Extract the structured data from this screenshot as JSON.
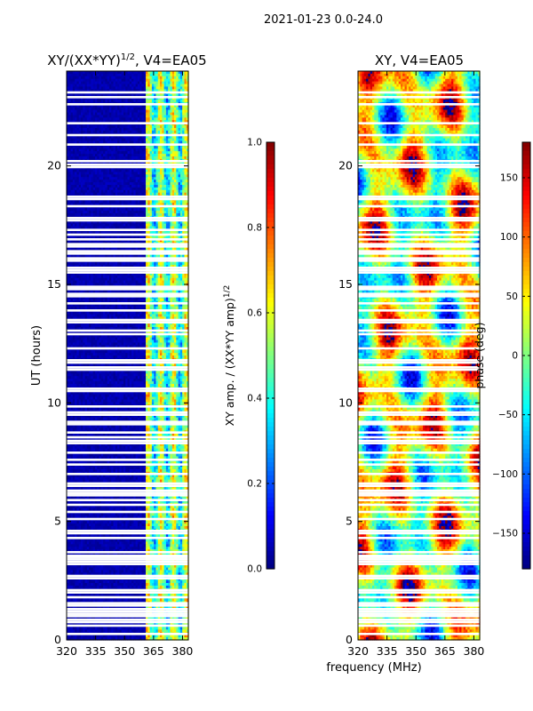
{
  "figure_title": "2021-01-23 0.0-24.0",
  "shared": {
    "xlabel": "frequency (MHz)",
    "ylabel": "UT (hours)"
  },
  "chart_data": [
    {
      "type": "heatmap",
      "id": "amp",
      "title": "XY/(XX*YY)^{1/2}, V4=EA05",
      "title_main": "XY/(XX*YY)",
      "title_sup": "1/2",
      "title_tail": ", V4=EA05",
      "xlim": [
        320,
        383
      ],
      "ylim": [
        0,
        24
      ],
      "xticks": [
        320,
        335,
        350,
        365,
        380
      ],
      "yticks": [
        0,
        5,
        10,
        15,
        20
      ],
      "active_freq_range": [
        360,
        382
      ],
      "colorbar": {
        "label_main": "XY amp. / (XX*YY amp)",
        "label_sup": "1/2",
        "range": [
          0.0,
          1.0
        ],
        "ticks": [
          "0.0",
          "0.2",
          "0.4",
          "0.6",
          "0.8",
          "1.0"
        ],
        "tick_values": [
          0.0,
          0.2,
          0.4,
          0.6,
          0.8,
          1.0
        ]
      }
    },
    {
      "type": "heatmap",
      "id": "phase",
      "title": "XY, V4=EA05",
      "xlim": [
        320,
        383
      ],
      "ylim": [
        0,
        24
      ],
      "xticks": [
        320,
        335,
        350,
        365,
        380
      ],
      "yticks": [
        0,
        5,
        10,
        15,
        20
      ],
      "colorbar": {
        "label": "phase (deg)",
        "range": [
          -180,
          180
        ],
        "ticks": [
          "150",
          "100",
          "50",
          "0",
          "−50",
          "−100",
          "−150"
        ],
        "tick_values": [
          150,
          100,
          50,
          0,
          -50,
          -100,
          -150
        ]
      }
    }
  ],
  "flagged_hours": [
    0.25,
    0.6,
    0.75,
    0.85,
    1.0,
    1.1,
    1.2,
    1.3,
    1.45,
    1.55,
    1.8,
    2.0,
    2.1,
    2.6,
    2.7,
    3.2,
    3.3,
    3.4,
    3.5,
    3.55,
    3.7,
    4.3,
    4.5,
    4.6,
    5.1,
    5.4,
    5.7,
    5.9,
    6.1,
    6.2,
    6.3,
    6.5,
    6.6,
    7.0,
    7.4,
    7.6,
    7.9,
    8.3,
    8.4,
    8.55,
    8.75,
    9.1,
    9.2,
    9.5,
    9.6,
    9.85,
    10.5,
    10.6,
    11.4,
    11.5,
    11.7,
    11.8,
    12.3,
    12.9,
    13.05,
    13.4,
    13.5,
    13.9,
    14.2,
    14.5,
    14.6,
    14.8,
    14.9,
    15.5,
    15.6,
    15.7,
    16.0,
    16.1,
    16.3,
    16.4,
    16.6,
    16.7,
    16.9,
    17.1,
    17.3,
    17.7,
    17.8,
    18.3,
    18.6,
    18.7,
    19.95,
    20.05,
    20.2,
    20.9,
    21.3,
    21.8,
    22.6,
    22.9,
    23.1
  ]
}
